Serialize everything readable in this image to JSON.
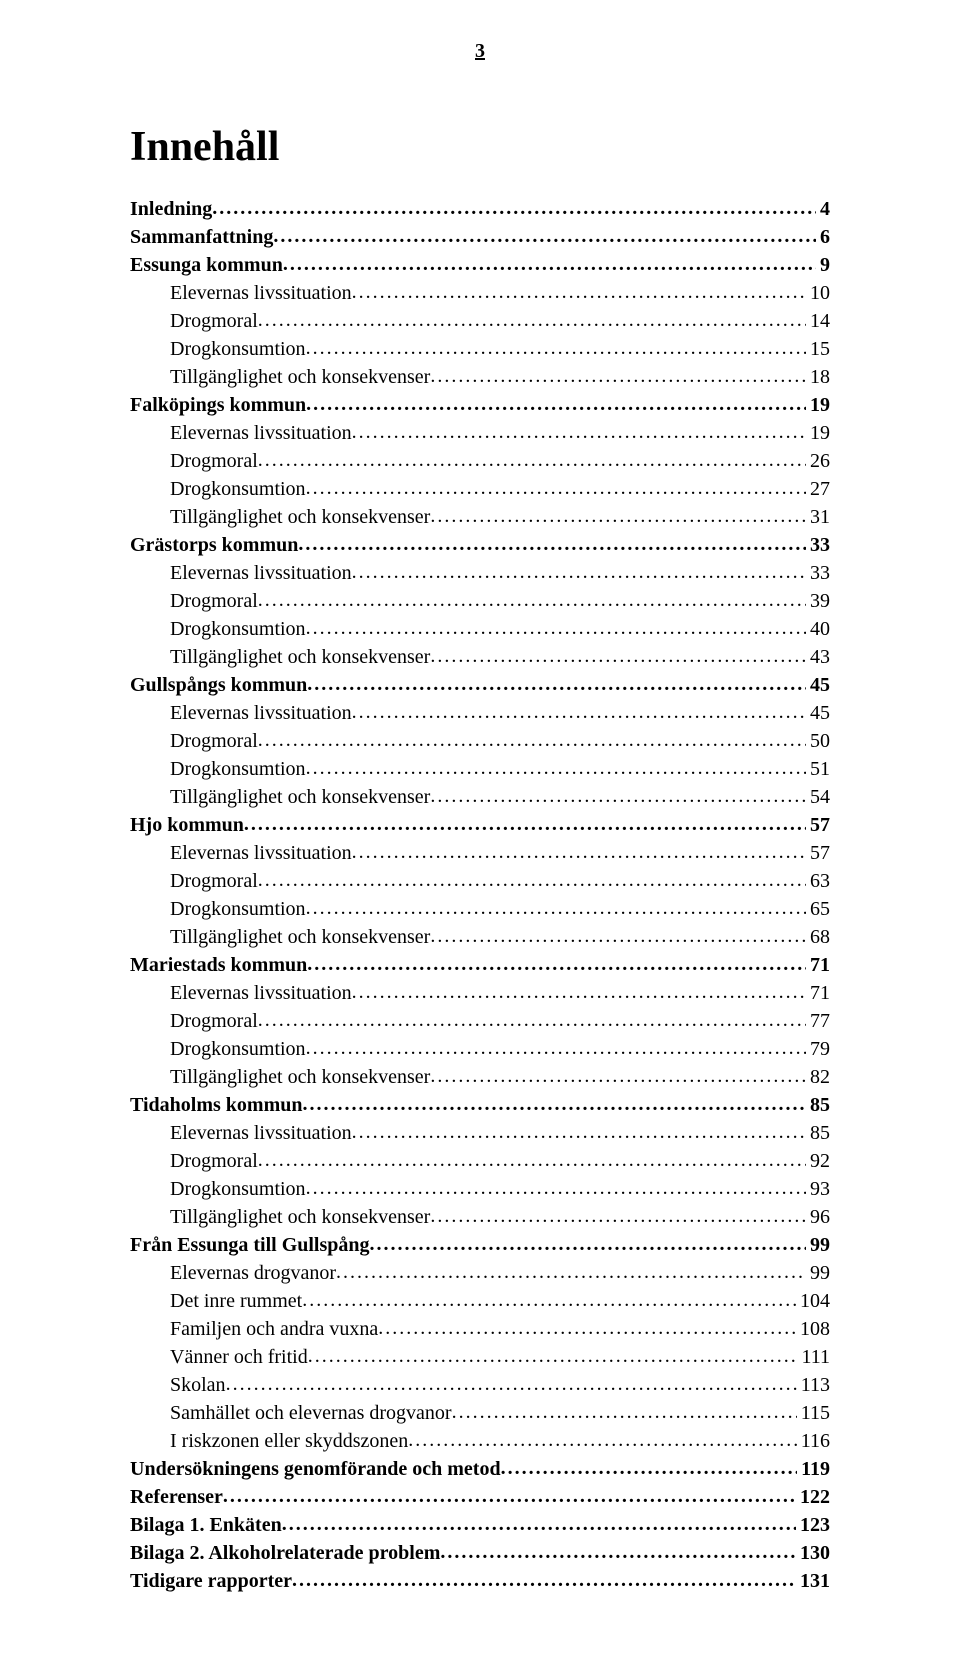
{
  "page_number": "3",
  "title": "Innehåll",
  "entries": [
    {
      "label": "Inledning",
      "page": "4",
      "level": 0,
      "bold": true
    },
    {
      "label": "Sammanfattning",
      "page": "6",
      "level": 0,
      "bold": true
    },
    {
      "label": "Essunga kommun",
      "page": "9",
      "level": 0,
      "bold": true
    },
    {
      "label": "Elevernas livssituation",
      "page": "10",
      "level": 1,
      "bold": false
    },
    {
      "label": "Drogmoral",
      "page": "14",
      "level": 1,
      "bold": false
    },
    {
      "label": "Drogkonsumtion",
      "page": "15",
      "level": 1,
      "bold": false
    },
    {
      "label": "Tillgänglighet och konsekvenser",
      "page": "18",
      "level": 1,
      "bold": false
    },
    {
      "label": "Falköpings kommun",
      "page": "19",
      "level": 0,
      "bold": true
    },
    {
      "label": "Elevernas livssituation",
      "page": "19",
      "level": 1,
      "bold": false
    },
    {
      "label": "Drogmoral",
      "page": "26",
      "level": 1,
      "bold": false
    },
    {
      "label": "Drogkonsumtion",
      "page": "27",
      "level": 1,
      "bold": false
    },
    {
      "label": "Tillgänglighet och konsekvenser",
      "page": "31",
      "level": 1,
      "bold": false
    },
    {
      "label": "Grästorps kommun",
      "page": "33",
      "level": 0,
      "bold": true
    },
    {
      "label": "Elevernas livssituation",
      "page": "33",
      "level": 1,
      "bold": false
    },
    {
      "label": "Drogmoral",
      "page": "39",
      "level": 1,
      "bold": false
    },
    {
      "label": "Drogkonsumtion",
      "page": "40",
      "level": 1,
      "bold": false
    },
    {
      "label": "Tillgänglighet och konsekvenser",
      "page": "43",
      "level": 1,
      "bold": false
    },
    {
      "label": "Gullspångs kommun",
      "page": "45",
      "level": 0,
      "bold": true
    },
    {
      "label": "Elevernas livssituation",
      "page": "45",
      "level": 1,
      "bold": false
    },
    {
      "label": "Drogmoral",
      "page": "50",
      "level": 1,
      "bold": false
    },
    {
      "label": "Drogkonsumtion",
      "page": "51",
      "level": 1,
      "bold": false
    },
    {
      "label": "Tillgänglighet och konsekvenser",
      "page": "54",
      "level": 1,
      "bold": false
    },
    {
      "label": "Hjo kommun",
      "page": "57",
      "level": 0,
      "bold": true
    },
    {
      "label": "Elevernas livssituation",
      "page": "57",
      "level": 1,
      "bold": false
    },
    {
      "label": "Drogmoral",
      "page": "63",
      "level": 1,
      "bold": false
    },
    {
      "label": "Drogkonsumtion",
      "page": "65",
      "level": 1,
      "bold": false
    },
    {
      "label": "Tillgänglighet och konsekvenser",
      "page": "68",
      "level": 1,
      "bold": false
    },
    {
      "label": "Mariestads kommun",
      "page": "71",
      "level": 0,
      "bold": true
    },
    {
      "label": "Elevernas livssituation",
      "page": "71",
      "level": 1,
      "bold": false
    },
    {
      "label": "Drogmoral",
      "page": "77",
      "level": 1,
      "bold": false
    },
    {
      "label": "Drogkonsumtion",
      "page": "79",
      "level": 1,
      "bold": false
    },
    {
      "label": "Tillgänglighet och konsekvenser",
      "page": "82",
      "level": 1,
      "bold": false
    },
    {
      "label": "Tidaholms kommun",
      "page": "85",
      "level": 0,
      "bold": true
    },
    {
      "label": "Elevernas livssituation",
      "page": "85",
      "level": 1,
      "bold": false
    },
    {
      "label": "Drogmoral",
      "page": "92",
      "level": 1,
      "bold": false
    },
    {
      "label": "Drogkonsumtion",
      "page": "93",
      "level": 1,
      "bold": false
    },
    {
      "label": "Tillgänglighet och konsekvenser",
      "page": "96",
      "level": 1,
      "bold": false
    },
    {
      "label": "Från Essunga till Gullspång",
      "page": "99",
      "level": 0,
      "bold": true
    },
    {
      "label": "Elevernas drogvanor",
      "page": "99",
      "level": 1,
      "bold": false
    },
    {
      "label": "Det inre rummet",
      "page": "104",
      "level": 1,
      "bold": false
    },
    {
      "label": "Familjen och andra vuxna",
      "page": "108",
      "level": 1,
      "bold": false
    },
    {
      "label": "Vänner och fritid",
      "page": "111",
      "level": 1,
      "bold": false
    },
    {
      "label": "Skolan",
      "page": "113",
      "level": 1,
      "bold": false
    },
    {
      "label": "Samhället och elevernas drogvanor",
      "page": "115",
      "level": 1,
      "bold": false
    },
    {
      "label": "I riskzonen eller skyddszonen",
      "page": "116",
      "level": 1,
      "bold": false
    },
    {
      "label": "Undersökningens genomförande och metod",
      "page": "119",
      "level": 0,
      "bold": true
    },
    {
      "label": "Referenser",
      "page": "122",
      "level": 0,
      "bold": true
    },
    {
      "label": "Bilaga 1. Enkäten",
      "page": "123",
      "level": 0,
      "bold": true
    },
    {
      "label": "Bilaga 2. Alkoholrelaterade problem",
      "page": "130",
      "level": 0,
      "bold": true
    },
    {
      "label": "Tidigare rapporter",
      "page": "131",
      "level": 0,
      "bold": true
    }
  ]
}
